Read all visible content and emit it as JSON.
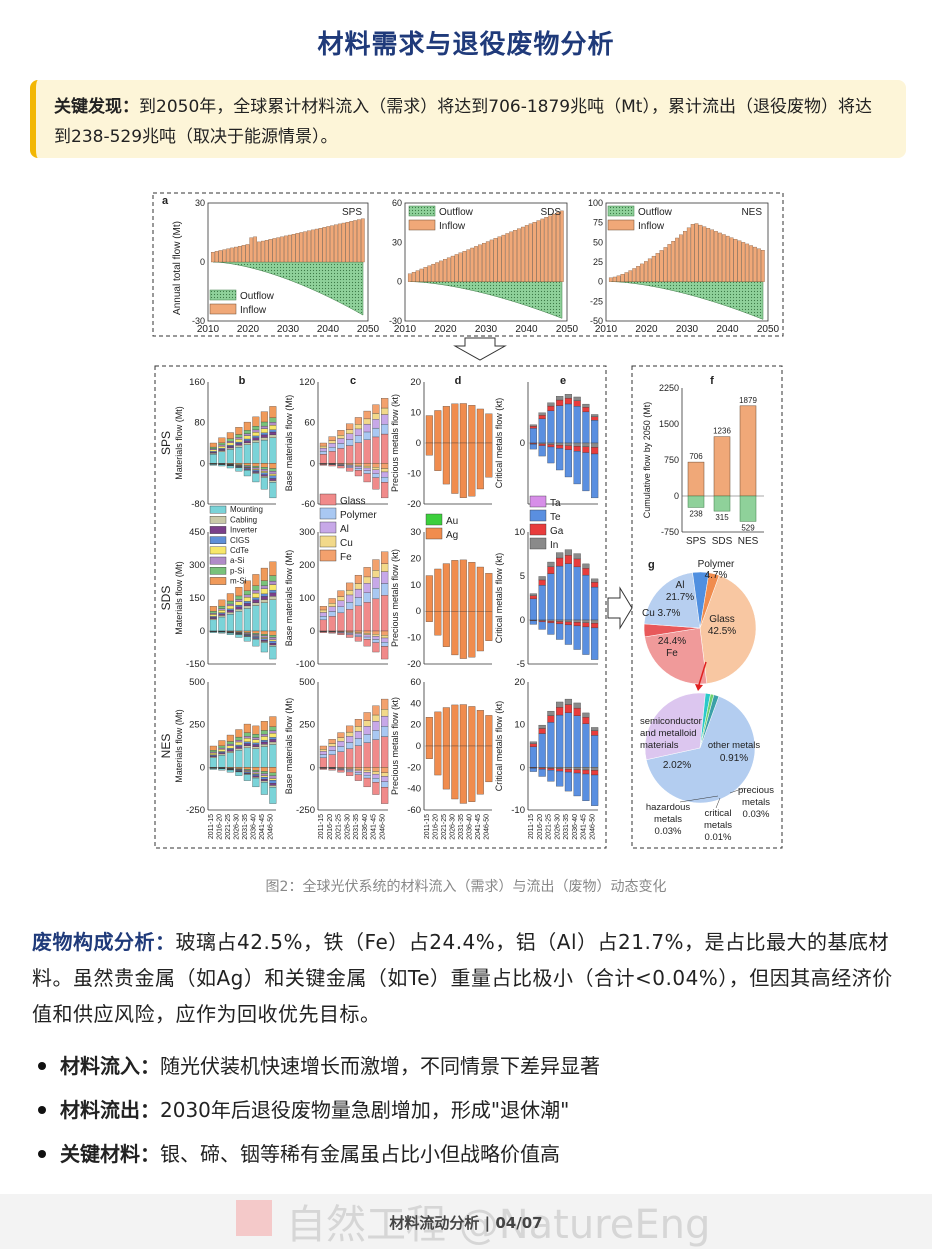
{
  "title": "材料需求与退役废物分析",
  "callout": {
    "label": "关键发现：",
    "text": "到2050年，全球累计材料流入（需求）将达到706-1879兆吨（Mt），累计流出（退役废物）将达到238-529兆吨（取决于能源情景）。"
  },
  "figure": {
    "caption": "图2：全球光伏系统的材料流入（需求）与流出（废物）动态变化",
    "panel_a": {
      "letter": "a",
      "ylabel": "Annual total flow (Mt)",
      "x_ticks": [
        "2010",
        "2020",
        "2030",
        "2040",
        "2050"
      ],
      "legend": [
        "Outflow",
        "Inflow"
      ],
      "subplots": [
        {
          "scenario": "SPS",
          "y_ticks": [
            "30",
            "0",
            "-30"
          ],
          "ylim": [
            -30,
            30
          ]
        },
        {
          "scenario": "SDS",
          "y_ticks": [
            "60",
            "30",
            "0",
            "-30"
          ],
          "ylim": [
            -30,
            60
          ]
        },
        {
          "scenario": "NES",
          "y_ticks": [
            "100",
            "75",
            "50",
            "25",
            "0",
            "-25",
            "-50"
          ],
          "ylim": [
            -50,
            100
          ]
        }
      ]
    },
    "panels_be": {
      "letters": [
        "b",
        "c",
        "d",
        "e"
      ],
      "row_labels": [
        "SPS",
        "SDS",
        "NES"
      ],
      "ylabels": [
        "Materials flow (Mt)",
        "Base materials flow (Mt)",
        "Precious metals flow (kt)",
        "Critical metals flow (kt)"
      ],
      "x_ticks": [
        "2011-15",
        "2016-20",
        "2021-25",
        "2026-30",
        "2031-35",
        "2036-40",
        "2041-45",
        "2046-50"
      ],
      "y_ticks": {
        "b": [
          [
            "160",
            "80",
            "0",
            "-80"
          ],
          [
            "450",
            "300",
            "150",
            "0",
            "-150"
          ],
          [
            "500",
            "250",
            "0",
            "-250"
          ]
        ],
        "c": [
          [
            "120",
            "60",
            "0",
            "-60"
          ],
          [
            "300",
            "200",
            "100",
            "0",
            "-100"
          ],
          [
            "500",
            "250",
            "0",
            "-250"
          ]
        ],
        "d": [
          [
            "20",
            "10",
            "0",
            "-10",
            "-20"
          ],
          [
            "30",
            "20",
            "10",
            "0",
            "-10",
            "-20"
          ],
          [
            "60",
            "40",
            "20",
            "0",
            "-20",
            "-40",
            "-60"
          ]
        ],
        "e": [
          [
            "0"
          ],
          [
            "10",
            "5",
            "0",
            "-5"
          ],
          [
            "20",
            "10",
            "0",
            "-10"
          ]
        ]
      },
      "legend_b": [
        "Mounting",
        "Cabling",
        "Inverter",
        "CIGS",
        "CdTe",
        "a-Si",
        "p-Si",
        "m-Si"
      ],
      "legend_c": [
        "Glass",
        "Polymer",
        "Al",
        "Cu",
        "Fe"
      ],
      "legend_d": [
        "Au",
        "Ag"
      ],
      "legend_e": [
        "Ta",
        "Te",
        "Ga",
        "In"
      ]
    },
    "panel_f": {
      "letter": "f",
      "ylabel": "Cumulative flow by 2050 (Mt)",
      "y_ticks": [
        "2250",
        "1500",
        "750",
        "0",
        "-750"
      ],
      "categories": [
        "SPS",
        "SDS",
        "NES"
      ],
      "inflow": [
        706,
        1236,
        1879
      ],
      "outflow": [
        238,
        315,
        529
      ],
      "inflow_labels": [
        "706",
        "1236",
        "1879"
      ],
      "outflow_labels": [
        "238",
        "315",
        "529"
      ]
    },
    "panel_g": {
      "letter": "g",
      "pie1_labels": [
        {
          "name": "Glass",
          "pct": "42.5%"
        },
        {
          "name": "Fe",
          "pct": "24.4%"
        },
        {
          "name": "Al",
          "pct": "21.7%"
        },
        {
          "name": "Polymer",
          "pct": "4.7%"
        },
        {
          "name": "Cu",
          "pct": "3.7%"
        }
      ],
      "pie2_labels": [
        {
          "name": "semiconductor and metalloid materials",
          "pct": "2.02%"
        },
        {
          "name": "other metals",
          "pct": "0.91%"
        },
        {
          "name": "precious metals",
          "pct": "0.03%"
        },
        {
          "name": "critical metals",
          "pct": "0.01%"
        },
        {
          "name": "hazardous metals",
          "pct": "0.03%"
        }
      ]
    },
    "colors": {
      "inflow": "#f0a878",
      "outflow": "#8fd19a",
      "glass": "#f08a8a",
      "polymer": "#a9c8f2",
      "al": "#c7a8e8",
      "cu": "#f2d98a",
      "fe": "#f3a16d",
      "au": "#3ccf3c",
      "ag": "#f08c4e",
      "ta": "#d78ee8",
      "te": "#5a8fe0",
      "ga": "#e83c3c",
      "in": "#8a8a8a"
    }
  },
  "analysis": {
    "lead": "废物构成分析：",
    "text": "玻璃占42.5%，铁（Fe）占24.4%，铝（Al）占21.7%，是占比最大的基底材料。虽然贵金属（如Ag）和关键金属（如Te）重量占比极小（合计<0.04%），但因其高经济价值和供应风险，应作为回收优先目标。"
  },
  "bullets": [
    {
      "label": "材料流入：",
      "text": "随光伏装机快速增长而激增，不同情景下差异显著"
    },
    {
      "label": "材料流出：",
      "text": "2030年后退役废物量急剧增加，形成\"退休潮\""
    },
    {
      "label": "关键材料：",
      "text": "银、碲、铟等稀有金属虽占比小但战略价值高"
    }
  ],
  "footer": {
    "watermark": "自然工程 @NatureEng",
    "label": "材料流动分析 | 04/07"
  }
}
